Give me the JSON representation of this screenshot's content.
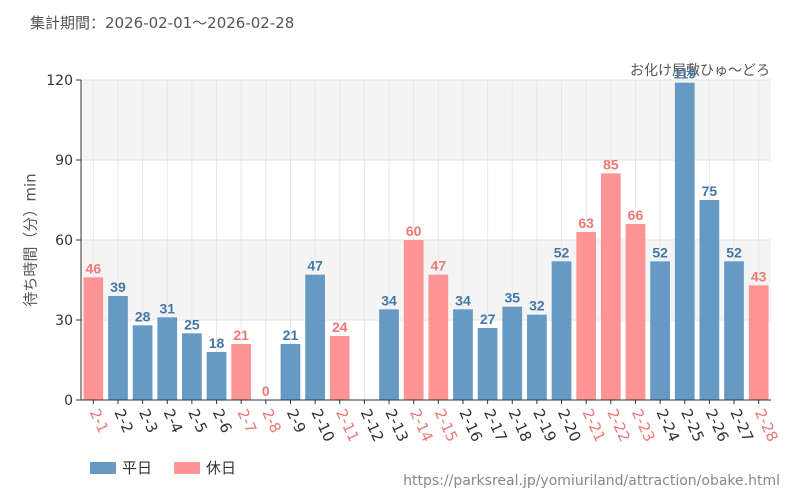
{
  "header": {
    "period": "集計期間：2026-02-01～2026-02-28"
  },
  "source": "https://parksreal.jp/yomiuriland/attraction/obake.html",
  "colors": {
    "weekday": "#6699c4",
    "holiday": "#ff9494",
    "weekday_label": "#4477a6",
    "holiday_label": "#ee7777"
  },
  "chart_data": {
    "type": "bar",
    "title": "お化け屋敷ひゅ～どろ",
    "xlabel": "",
    "ylabel": "待ち時間（分）min",
    "ylim": [
      0,
      120
    ],
    "yticks": [
      0,
      30,
      60,
      90,
      120
    ],
    "categories": [
      "2-1",
      "2-2",
      "2-3",
      "2-4",
      "2-5",
      "2-6",
      "2-7",
      "2-8",
      "2-9",
      "2-10",
      "2-11",
      "2-12",
      "2-13",
      "2-14",
      "2-15",
      "2-16",
      "2-17",
      "2-18",
      "2-19",
      "2-20",
      "2-21",
      "2-22",
      "2-23",
      "2-24",
      "2-25",
      "2-26",
      "2-27",
      "2-28"
    ],
    "values": [
      46,
      39,
      28,
      31,
      25,
      18,
      21,
      0,
      21,
      47,
      24,
      null,
      34,
      60,
      47,
      34,
      27,
      35,
      32,
      52,
      63,
      85,
      66,
      52,
      119,
      75,
      52,
      43
    ],
    "day_type": [
      "holiday",
      "weekday",
      "weekday",
      "weekday",
      "weekday",
      "weekday",
      "holiday",
      "holiday",
      "weekday",
      "weekday",
      "holiday",
      "weekday",
      "weekday",
      "holiday",
      "holiday",
      "weekday",
      "weekday",
      "weekday",
      "weekday",
      "weekday",
      "holiday",
      "holiday",
      "holiday",
      "weekday",
      "weekday",
      "weekday",
      "weekday",
      "holiday"
    ],
    "legend": [
      {
        "key": "weekday",
        "label": "平日"
      },
      {
        "key": "holiday",
        "label": "休日"
      }
    ],
    "legend_position": "bottom-left",
    "grid": true
  }
}
